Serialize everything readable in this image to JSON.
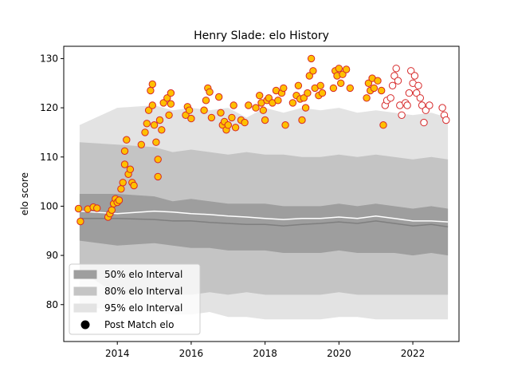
{
  "chart_data": {
    "type": "scatter",
    "title": "Henry Slade: elo History",
    "xlabel": "",
    "ylabel": "elo score",
    "xlim": [
      2012.55,
      2023.25
    ],
    "ylim": [
      72.5,
      132.5
    ],
    "x_ticks": [
      2014,
      2016,
      2018,
      2020,
      2022
    ],
    "y_ticks": [
      80,
      90,
      100,
      110,
      120,
      130
    ],
    "grid": false,
    "legend_placement": "lower-left",
    "legend": [
      {
        "key": "band50",
        "label": "50% elo Interval"
      },
      {
        "key": "band80",
        "label": "80% elo Interval"
      },
      {
        "key": "band95",
        "label": "95% elo Interval"
      },
      {
        "key": "points",
        "label": "Post Match elo"
      }
    ],
    "colors": {
      "band50": "#9e9e9e",
      "band80": "#c4c4c4",
      "band95": "#e3e3e3",
      "median": "#7f7f7f",
      "mean": "#ffffff",
      "point_edge": "#d62728",
      "point_fill": "#ffc000",
      "point_fill_hollow": "#ffffff"
    },
    "bands": {
      "x": [
        2012.98,
        2014.0,
        2015.0,
        2015.5,
        2016.0,
        2016.5,
        2017.0,
        2017.5,
        2018.0,
        2018.5,
        2019.0,
        2019.5,
        2020.0,
        2020.5,
        2021.0,
        2021.5,
        2022.0,
        2022.5,
        2022.95
      ],
      "p975": [
        116.5,
        120.0,
        120.5,
        119.5,
        120.0,
        119.5,
        120.0,
        118.0,
        120.0,
        119.0,
        120.0,
        119.5,
        120.0,
        119.0,
        119.5,
        119.0,
        118.5,
        119.0,
        118.0
      ],
      "p90": [
        113.0,
        112.5,
        112.0,
        111.0,
        111.5,
        111.0,
        110.5,
        111.0,
        110.5,
        110.5,
        110.0,
        110.0,
        110.5,
        110.0,
        110.5,
        110.0,
        109.5,
        110.0,
        109.5
      ],
      "p75": [
        102.5,
        102.5,
        102.0,
        101.0,
        101.5,
        101.0,
        100.5,
        100.5,
        100.5,
        100.0,
        100.0,
        100.0,
        100.5,
        100.0,
        100.5,
        100.0,
        99.5,
        100.0,
        99.5
      ],
      "p25": [
        93.0,
        92.0,
        92.5,
        92.0,
        91.5,
        91.5,
        91.0,
        91.0,
        91.0,
        90.5,
        90.5,
        90.5,
        91.0,
        90.5,
        90.5,
        90.5,
        90.0,
        90.5,
        90.0
      ],
      "p10": [
        87.0,
        82.0,
        82.5,
        82.0,
        82.0,
        82.5,
        82.0,
        82.5,
        82.0,
        82.0,
        82.0,
        82.0,
        82.5,
        82.0,
        82.0,
        82.0,
        82.0,
        82.0,
        82.0
      ],
      "p025": [
        79.5,
        79.0,
        78.5,
        78.0,
        78.0,
        78.5,
        77.5,
        77.5,
        77.0,
        77.0,
        77.0,
        77.0,
        77.5,
        77.5,
        77.0,
        77.0,
        77.0,
        77.0,
        77.0
      ],
      "median": [
        97.5,
        97.5,
        97.3,
        97.0,
        97.0,
        96.7,
        96.5,
        96.3,
        96.3,
        96.0,
        96.3,
        96.5,
        96.8,
        96.5,
        97.0,
        96.5,
        96.0,
        96.3,
        95.8
      ],
      "mean": [
        99.0,
        98.5,
        99.0,
        98.8,
        98.5,
        98.3,
        98.0,
        97.8,
        97.5,
        97.3,
        97.5,
        97.5,
        97.8,
        97.5,
        98.0,
        97.5,
        97.0,
        97.0,
        96.8
      ]
    },
    "series": [
      {
        "name": "Post Match elo",
        "points": [
          [
            2012.95,
            99.5
          ],
          [
            2013.0,
            96.9
          ],
          [
            2013.2,
            99.4
          ],
          [
            2013.35,
            99.8
          ],
          [
            2013.45,
            99.6
          ],
          [
            2013.75,
            97.8
          ],
          [
            2013.8,
            98.5
          ],
          [
            2013.85,
            99.2
          ],
          [
            2013.9,
            100.5
          ],
          [
            2013.95,
            101.5
          ],
          [
            2014.0,
            100.8
          ],
          [
            2014.05,
            101.2
          ],
          [
            2014.1,
            103.5
          ],
          [
            2014.15,
            104.8
          ],
          [
            2014.2,
            108.5
          ],
          [
            2014.2,
            111.2
          ],
          [
            2014.25,
            113.5
          ],
          [
            2014.3,
            106.5
          ],
          [
            2014.35,
            107.5
          ],
          [
            2014.4,
            104.8
          ],
          [
            2014.45,
            104.2
          ],
          [
            2014.65,
            112.5
          ],
          [
            2014.75,
            115.0
          ],
          [
            2014.8,
            116.8
          ],
          [
            2014.85,
            119.5
          ],
          [
            2014.9,
            123.5
          ],
          [
            2014.95,
            124.8
          ],
          [
            2014.95,
            120.5
          ],
          [
            2015.0,
            116.5
          ],
          [
            2015.05,
            113.0
          ],
          [
            2015.1,
            109.5
          ],
          [
            2015.1,
            106.0
          ],
          [
            2015.15,
            117.5
          ],
          [
            2015.2,
            115.5
          ],
          [
            2015.25,
            121.0
          ],
          [
            2015.35,
            122.0
          ],
          [
            2015.4,
            118.5
          ],
          [
            2015.45,
            120.8
          ],
          [
            2015.45,
            123.0
          ],
          [
            2015.85,
            118.5
          ],
          [
            2015.9,
            120.2
          ],
          [
            2015.95,
            119.5
          ],
          [
            2016.0,
            117.8
          ],
          [
            2016.35,
            119.5
          ],
          [
            2016.4,
            121.5
          ],
          [
            2016.45,
            124.0
          ],
          [
            2016.5,
            123.2
          ],
          [
            2016.55,
            118.0
          ],
          [
            2016.75,
            122.2
          ],
          [
            2016.8,
            119.0
          ],
          [
            2016.85,
            116.5
          ],
          [
            2016.9,
            117.2
          ],
          [
            2016.95,
            115.5
          ],
          [
            2017.0,
            116.5
          ],
          [
            2017.1,
            118.0
          ],
          [
            2017.15,
            120.5
          ],
          [
            2017.2,
            116.0
          ],
          [
            2017.35,
            117.5
          ],
          [
            2017.45,
            117.0
          ],
          [
            2017.55,
            120.5
          ],
          [
            2017.75,
            120.0
          ],
          [
            2017.85,
            122.5
          ],
          [
            2017.9,
            121.0
          ],
          [
            2017.95,
            119.5
          ],
          [
            2018.0,
            117.5
          ],
          [
            2018.05,
            121.5
          ],
          [
            2018.1,
            122.0
          ],
          [
            2018.2,
            121.0
          ],
          [
            2018.3,
            123.5
          ],
          [
            2018.35,
            121.5
          ],
          [
            2018.45,
            123.0
          ],
          [
            2018.5,
            124.0
          ],
          [
            2018.55,
            116.5
          ],
          [
            2018.75,
            121.0
          ],
          [
            2018.85,
            122.5
          ],
          [
            2018.9,
            124.5
          ],
          [
            2018.95,
            121.8
          ],
          [
            2019.0,
            117.5
          ],
          [
            2019.05,
            122.0
          ],
          [
            2019.1,
            120.0
          ],
          [
            2019.15,
            123.0
          ],
          [
            2019.2,
            126.5
          ],
          [
            2019.25,
            130.0
          ],
          [
            2019.3,
            127.5
          ],
          [
            2019.35,
            124.0
          ],
          [
            2019.45,
            122.5
          ],
          [
            2019.5,
            124.5
          ],
          [
            2019.55,
            123.0
          ],
          [
            2019.85,
            124.0
          ],
          [
            2019.9,
            127.5
          ],
          [
            2019.95,
            126.5
          ],
          [
            2020.0,
            128.0
          ],
          [
            2020.05,
            125.0
          ],
          [
            2020.1,
            126.8
          ],
          [
            2020.2,
            127.8
          ],
          [
            2020.3,
            124.0
          ],
          [
            2020.75,
            122.0
          ],
          [
            2020.8,
            125.0
          ],
          [
            2020.85,
            123.5
          ],
          [
            2020.9,
            126.0
          ],
          [
            2020.95,
            124.0
          ],
          [
            2021.05,
            125.5
          ],
          [
            2021.15,
            123.5
          ],
          [
            2021.2,
            116.5
          ],
          [
            2021.25,
            120.5
          ],
          [
            2021.3,
            121.5
          ],
          [
            2021.4,
            122.0
          ],
          [
            2021.45,
            124.5
          ],
          [
            2021.5,
            126.5
          ],
          [
            2021.55,
            128.0
          ],
          [
            2021.6,
            125.5
          ],
          [
            2021.65,
            120.5
          ],
          [
            2021.7,
            118.5
          ],
          [
            2021.8,
            121.0
          ],
          [
            2021.85,
            120.5
          ],
          [
            2021.9,
            123.0
          ],
          [
            2021.95,
            127.5
          ],
          [
            2022.0,
            125.0
          ],
          [
            2022.05,
            126.5
          ],
          [
            2022.1,
            123.0
          ],
          [
            2022.15,
            124.5
          ],
          [
            2022.2,
            122.0
          ],
          [
            2022.25,
            120.5
          ],
          [
            2022.3,
            117.0
          ],
          [
            2022.35,
            119.5
          ],
          [
            2022.45,
            120.5
          ],
          [
            2022.8,
            120.0
          ],
          [
            2022.85,
            118.5
          ],
          [
            2022.9,
            117.5
          ]
        ],
        "hollow_indices": [
          104,
          105,
          106,
          107,
          108,
          109,
          110,
          111,
          112,
          113,
          114,
          115,
          116,
          117,
          118,
          119,
          120,
          121,
          122,
          123,
          124,
          125,
          126,
          127,
          128,
          129
        ]
      }
    ]
  }
}
